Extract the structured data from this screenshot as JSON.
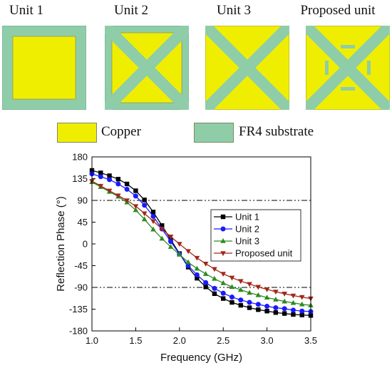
{
  "units": [
    {
      "title": "Unit 1"
    },
    {
      "title": "Unit 2"
    },
    {
      "title": "Unit 3"
    },
    {
      "title": "Proposed unit"
    }
  ],
  "material_legend": [
    {
      "label": "Copper",
      "color": "#f0ee00"
    },
    {
      "label": "FR4 substrate",
      "color": "#8ecda8"
    }
  ],
  "chart_data": {
    "type": "line",
    "title": "",
    "xlabel": "Frequency (GHz)",
    "ylabel": "Reflection Phase (°)",
    "xlim": [
      1.0,
      3.5
    ],
    "ylim": [
      -180,
      180
    ],
    "xticks": [
      "1.0",
      "1.5",
      "2.0",
      "2.5",
      "3.0",
      "3.5"
    ],
    "yticks": [
      "180",
      "135",
      "90",
      "45",
      "0",
      "-45",
      "-90",
      "-135",
      "-180"
    ],
    "reference_lines": [
      90,
      -90
    ],
    "legend_position": "right",
    "x": [
      1.0,
      1.1,
      1.2,
      1.3,
      1.4,
      1.5,
      1.6,
      1.7,
      1.8,
      1.9,
      2.0,
      2.1,
      2.2,
      2.3,
      2.4,
      2.5,
      2.6,
      2.7,
      2.8,
      2.9,
      3.0,
      3.1,
      3.2,
      3.3,
      3.4,
      3.5
    ],
    "series": [
      {
        "name": "Unit 1",
        "color": "#000000",
        "marker": "square",
        "values": [
          152,
          147,
          141,
          134,
          124,
          110,
          91,
          66,
          38,
          9,
          -20,
          -48,
          -71,
          -89,
          -103,
          -113,
          -121,
          -127,
          -132,
          -136,
          -139,
          -142,
          -144,
          -146,
          -147,
          -148
        ]
      },
      {
        "name": "Unit 2",
        "color": "#1a1aff",
        "marker": "circle",
        "values": [
          145,
          139,
          133,
          124,
          113,
          99,
          80,
          57,
          31,
          5,
          -21,
          -45,
          -64,
          -80,
          -92,
          -102,
          -110,
          -116,
          -121,
          -125,
          -129,
          -132,
          -134,
          -137,
          -139,
          -140
        ]
      },
      {
        "name": "Unit 3",
        "color": "#2e8b20",
        "marker": "triangle-up",
        "values": [
          128,
          118,
          108,
          98,
          86,
          70,
          51,
          30,
          11,
          -6,
          -22,
          -38,
          -51,
          -62,
          -72,
          -81,
          -89,
          -95,
          -101,
          -106,
          -111,
          -115,
          -119,
          -122,
          -125,
          -127
        ]
      },
      {
        "name": "Proposed unit",
        "color": "#a0281a",
        "marker": "triangle-down",
        "values": [
          130,
          120,
          110,
          100,
          90,
          78,
          63,
          47,
          31,
          15,
          0,
          -15,
          -29,
          -41,
          -52,
          -62,
          -70,
          -77,
          -83,
          -89,
          -94,
          -99,
          -103,
          -107,
          -110,
          -113
        ]
      }
    ]
  }
}
